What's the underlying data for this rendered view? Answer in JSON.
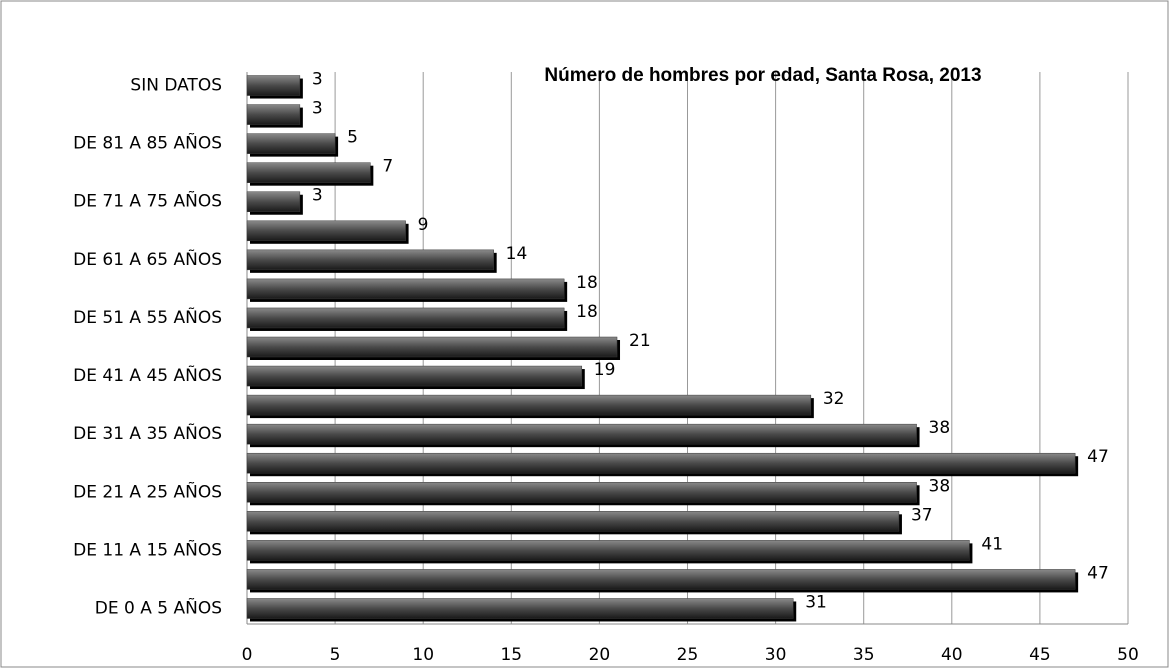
{
  "chart_data": {
    "type": "bar",
    "orientation": "horizontal",
    "title": "Número de hombres por edad, Santa Rosa, 2013",
    "categories": [
      "DE 0 A 5 AÑOS",
      null,
      "DE 11 A 15 AÑOS",
      null,
      "DE 21 A 25 AÑOS",
      null,
      "DE 31 A 35 AÑOS",
      null,
      "DE 41 A 45 AÑOS",
      null,
      "DE 51 A 55 AÑOS",
      null,
      "DE 61 A 65 AÑOS",
      null,
      "DE 71 A 75 AÑOS",
      null,
      "DE 81 A 85 AÑOS",
      null,
      "SIN DATOS"
    ],
    "values": [
      31,
      47,
      41,
      37,
      38,
      47,
      38,
      32,
      19,
      21,
      18,
      18,
      14,
      9,
      3,
      7,
      5,
      3,
      3
    ],
    "color": "#3a3a3a",
    "xlim": [
      0,
      50
    ],
    "xticks": [
      0,
      5,
      10,
      15,
      20,
      25,
      30,
      35,
      40,
      45,
      50
    ],
    "grid": true
  }
}
